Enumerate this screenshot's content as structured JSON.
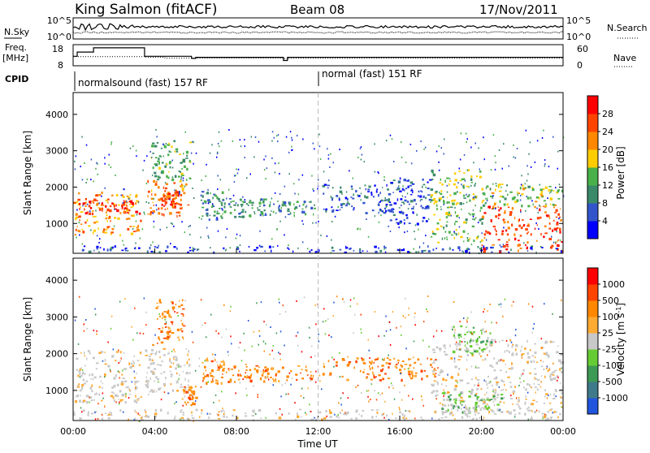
{
  "header": {
    "station": "King Salmon (fitACF)",
    "beam": "Beam 08",
    "date": "17/Nov/2011"
  },
  "panel_labels": {
    "nsky": "N.Sky",
    "nsearch": "N.Search",
    "freq": "Freq.",
    "freq_unit": "[MHz]",
    "nave": "Nave",
    "cpid": "CPID"
  },
  "cpid_segments": [
    {
      "label": "normalsound (fast) 157 RF",
      "start_hour": 0
    },
    {
      "label": "normal (fast) 151 RF",
      "start_hour": 12
    }
  ],
  "chart_data": [
    {
      "type": "line",
      "panel": "noise",
      "left_ticks": [
        "10^5",
        "10^0"
      ],
      "right_ticks": [
        "10^5",
        "10^0"
      ],
      "series": [
        {
          "name": "N.Sky",
          "style": "solid"
        },
        {
          "name": "N.Search",
          "style": "dotted"
        }
      ]
    },
    {
      "type": "line",
      "panel": "frequency",
      "left_ticks": [
        18,
        8
      ],
      "right_ticks": [
        60,
        0
      ],
      "x": [
        0,
        0.2,
        1.0,
        3.3,
        3.5,
        4.5,
        5.8,
        6.0,
        8.0,
        10.0,
        10.3,
        10.5,
        12.0,
        14.0,
        20.0,
        24.0
      ],
      "freq_mhz": [
        12.5,
        14.5,
        16.5,
        16.5,
        12.5,
        12.5,
        11.5,
        12.0,
        12.0,
        12.0,
        10.5,
        12.0,
        12.0,
        12.0,
        12.0,
        12.0
      ],
      "nave": [
        26,
        26,
        26,
        26,
        24,
        22,
        20,
        22,
        22,
        22,
        20,
        22,
        22,
        22,
        22,
        22
      ],
      "series": [
        {
          "name": "Freq. [MHz]",
          "style": "solid"
        },
        {
          "name": "Nave",
          "style": "dotted"
        }
      ]
    },
    {
      "type": "heatmap",
      "panel": "power",
      "xlabel": "",
      "ylabel": "Slant Range [km]",
      "xlim": [
        0,
        24
      ],
      "ylim": [
        180,
        4600
      ],
      "y_ticks": [
        1000,
        2000,
        3000,
        4000
      ],
      "colorbar": {
        "label": "Power [dB]",
        "ticks": [
          4,
          8,
          12,
          16,
          20,
          24,
          28
        ],
        "range": [
          0,
          32
        ],
        "colors": [
          "#0000ff",
          "#3355cc",
          "#3a8a6a",
          "#4ab04a",
          "#ffcc00",
          "#ff8800",
          "#ff4400",
          "#ff0000"
        ]
      },
      "regions": [
        {
          "t0": 0.0,
          "t1": 3.3,
          "r0": 700,
          "r1": 1900,
          "value": 21
        },
        {
          "t0": 0.0,
          "t1": 3.3,
          "r0": 1300,
          "r1": 1700,
          "value": 27
        },
        {
          "t0": 3.6,
          "t1": 5.6,
          "r0": 1200,
          "r1": 2200,
          "value": 23
        },
        {
          "t0": 4.3,
          "t1": 5.3,
          "r0": 1500,
          "r1": 1900,
          "value": 27
        },
        {
          "t0": 3.8,
          "t1": 5.7,
          "r0": 2200,
          "r1": 3300,
          "value": 13
        },
        {
          "t0": 6.2,
          "t1": 7.4,
          "r0": 1100,
          "r1": 1900,
          "value": 10
        },
        {
          "t0": 7.5,
          "t1": 9.5,
          "r0": 1200,
          "r1": 1700,
          "value": 11
        },
        {
          "t0": 9.5,
          "t1": 11.8,
          "r0": 1250,
          "r1": 1650,
          "value": 10
        },
        {
          "t0": 12.2,
          "t1": 15.5,
          "r0": 1300,
          "r1": 2100,
          "value": 7
        },
        {
          "t0": 15.5,
          "t1": 17.5,
          "r0": 1000,
          "r1": 2300,
          "value": 6
        },
        {
          "t0": 17.5,
          "t1": 20.0,
          "r0": 500,
          "r1": 2500,
          "value": 15
        },
        {
          "t0": 20.0,
          "t1": 24.0,
          "r0": 250,
          "r1": 1500,
          "value": 26
        },
        {
          "t0": 20.0,
          "t1": 24.0,
          "r0": 1500,
          "r1": 2100,
          "value": 16
        },
        {
          "t0": 0.0,
          "t1": 24.0,
          "r0": 200,
          "r1": 400,
          "value": 5
        }
      ]
    },
    {
      "type": "heatmap",
      "panel": "velocity",
      "xlabel": "Time UT",
      "ylabel": "Slant Range [km]",
      "xlim": [
        0,
        24
      ],
      "ylim": [
        180,
        4600
      ],
      "x_ticks": [
        "00:00",
        "04:00",
        "08:00",
        "12:00",
        "16:00",
        "20:00",
        "00:00"
      ],
      "y_ticks": [
        1000,
        2000,
        3000,
        4000
      ],
      "colorbar": {
        "label": "Velocity [m s^-1]",
        "ticks": [
          "1000",
          "500",
          "100",
          "25",
          "-25",
          "-100",
          "-500",
          "-1000"
        ],
        "colors": [
          "#2255dd",
          "#3f7a8a",
          "#3d9a55",
          "#66cc33",
          "#c8c8c8",
          "#ffaa33",
          "#ff8800",
          "#ff4400",
          "#ff0000"
        ]
      },
      "regions": [
        {
          "t0": 0.0,
          "t1": 3.3,
          "r0": 700,
          "r1": 2100,
          "value": "gray"
        },
        {
          "t0": 3.5,
          "t1": 5.7,
          "r0": 900,
          "r1": 2200,
          "value": "gray"
        },
        {
          "t0": 4.0,
          "t1": 5.4,
          "r0": 2300,
          "r1": 3500,
          "value": "orange"
        },
        {
          "t0": 5.3,
          "t1": 6.0,
          "r0": 600,
          "r1": 1200,
          "value": "orange"
        },
        {
          "t0": 6.3,
          "t1": 7.4,
          "r0": 1200,
          "r1": 1900,
          "value": "orange"
        },
        {
          "t0": 7.5,
          "t1": 11.8,
          "r0": 1250,
          "r1": 1700,
          "value": "orange"
        },
        {
          "t0": 12.2,
          "t1": 17.8,
          "r0": 1300,
          "r1": 1900,
          "value": "orange"
        },
        {
          "t0": 17.5,
          "t1": 24.0,
          "r0": 400,
          "r1": 2400,
          "value": "gray"
        },
        {
          "t0": 18.0,
          "t1": 21.0,
          "r0": 400,
          "r1": 1000,
          "value": "green"
        },
        {
          "t0": 18.5,
          "t1": 20.5,
          "r0": 2000,
          "r1": 2800,
          "value": "green"
        },
        {
          "t0": 0.0,
          "t1": 24.0,
          "r0": 200,
          "r1": 500,
          "value": "gray"
        }
      ]
    }
  ]
}
